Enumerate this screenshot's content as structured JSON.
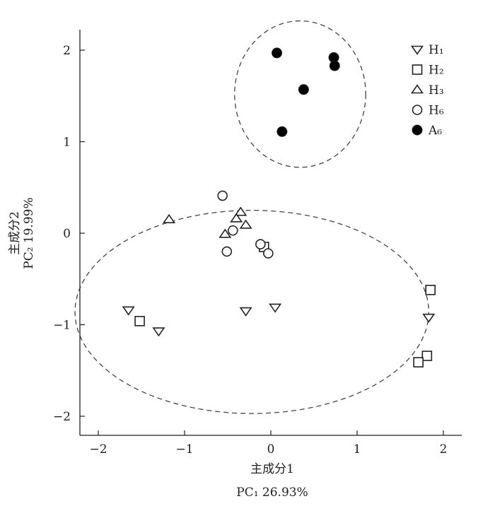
{
  "chart_data": {
    "type": "scatter",
    "title": "",
    "xlabel_line1": "主成分1",
    "xlabel_line2": "PC₁ 26.93%",
    "ylabel_line1": "主成分2",
    "ylabel_line2": "PC₂ 19.99%",
    "xlim": [
      -2.2,
      2.2
    ],
    "ylim": [
      -2.25,
      2.2
    ],
    "xticks": [
      -2,
      -1,
      0,
      1,
      2
    ],
    "yticks": [
      -2,
      -1,
      0,
      1,
      2
    ],
    "xtick_labels": [
      "−2",
      "−1",
      "0",
      "1",
      "2"
    ],
    "ytick_labels": [
      "−2",
      "−1",
      "0",
      "1",
      "2"
    ],
    "grid": false,
    "legend_position": "top-right",
    "series": [
      {
        "name": "H₁",
        "marker": "triangle-down",
        "points": [
          {
            "x": -1.65,
            "y": -0.84
          },
          {
            "x": -1.3,
            "y": -1.07
          },
          {
            "x": -0.29,
            "y": -0.85
          },
          {
            "x": 0.05,
            "y": -0.81
          },
          {
            "x": 1.83,
            "y": -0.92
          }
        ]
      },
      {
        "name": "H₂",
        "marker": "square",
        "points": [
          {
            "x": -1.52,
            "y": -0.96
          },
          {
            "x": -0.08,
            "y": -0.15
          },
          {
            "x": 1.85,
            "y": -0.62
          },
          {
            "x": 1.81,
            "y": -1.34
          },
          {
            "x": 1.71,
            "y": -1.41
          }
        ]
      },
      {
        "name": "H₃",
        "marker": "triangle-up",
        "points": [
          {
            "x": -1.18,
            "y": 0.15
          },
          {
            "x": -0.35,
            "y": 0.23
          },
          {
            "x": -0.4,
            "y": 0.16
          },
          {
            "x": -0.29,
            "y": 0.09
          },
          {
            "x": -0.53,
            "y": -0.01
          }
        ]
      },
      {
        "name": "H₆",
        "marker": "circle-open",
        "points": [
          {
            "x": -0.56,
            "y": 0.41
          },
          {
            "x": -0.44,
            "y": 0.03
          },
          {
            "x": -0.51,
            "y": -0.2
          },
          {
            "x": -0.12,
            "y": -0.12
          },
          {
            "x": -0.03,
            "y": -0.22
          }
        ]
      },
      {
        "name": "A₆",
        "marker": "circle-filled",
        "points": [
          {
            "x": 0.07,
            "y": 1.97
          },
          {
            "x": 0.73,
            "y": 1.92
          },
          {
            "x": 0.74,
            "y": 1.83
          },
          {
            "x": 0.38,
            "y": 1.57
          },
          {
            "x": 0.13,
            "y": 1.11
          }
        ]
      }
    ],
    "annotations": [
      {
        "type": "ellipse",
        "style": "dashed",
        "cx": 0.34,
        "cy": 1.52,
        "rx": 0.76,
        "ry": 0.8
      },
      {
        "type": "ellipse",
        "style": "dashed",
        "cx": -0.22,
        "cy": -0.86,
        "rx": 2.05,
        "ry": 1.11
      }
    ]
  },
  "colors": {
    "axis": "#222222",
    "marker_stroke": "#222222",
    "marker_fill_filled": "#000000",
    "ellipse": "#444444"
  }
}
